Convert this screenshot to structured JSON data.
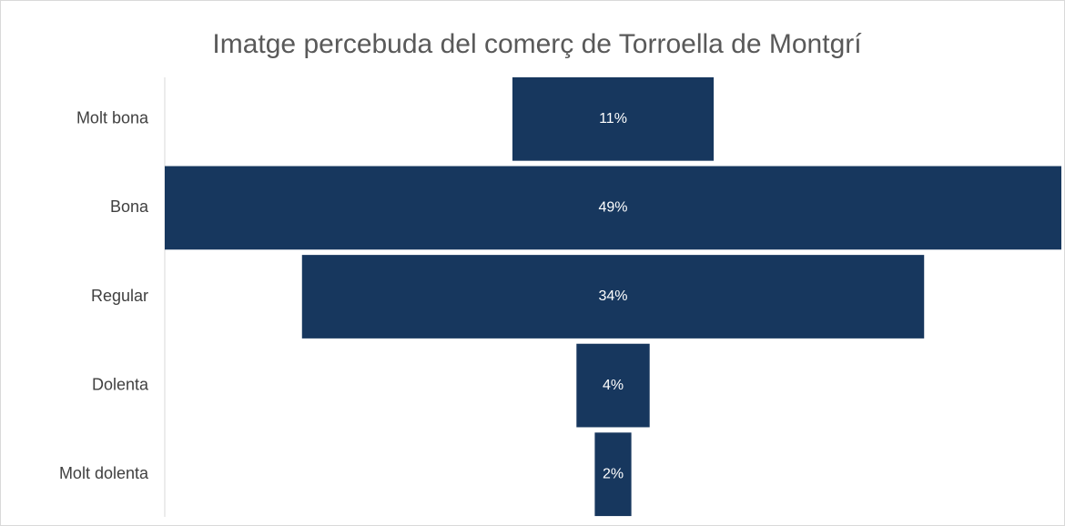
{
  "chart_data": {
    "type": "funnel",
    "title": "Imatge percebuda del comerç de Torroella de Montgrí",
    "categories": [
      "Molt bona",
      "Bona",
      "Regular",
      "Dolenta",
      "Molt dolenta"
    ],
    "values": [
      11,
      49,
      34,
      4,
      2
    ],
    "value_labels": [
      "11%",
      "49%",
      "34%",
      "4%",
      "2%"
    ],
    "color": "#17375e"
  }
}
